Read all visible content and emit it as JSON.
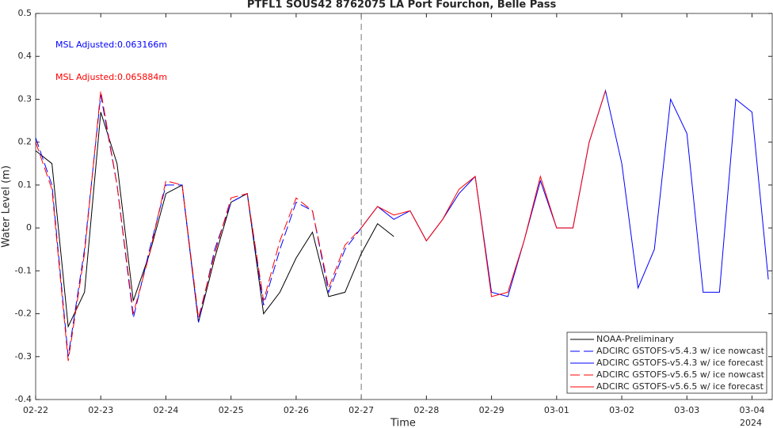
{
  "chart_data": {
    "type": "line",
    "title": "PTFL1 SOUS42 8762075 LA Port Fourchon, Belle Pass",
    "x_label": "Time",
    "y_label": "Water Level (m)",
    "xaxis_year": "2024",
    "annotations": [
      {
        "text": "MSL Adjusted:0.063166m",
        "color": "#0000ff"
      },
      {
        "text": "MSL Adjusted:0.065884m",
        "color": "#ff0000"
      }
    ],
    "x": [
      0,
      0.25,
      0.5,
      0.75,
      1,
      1.25,
      1.5,
      1.75,
      2,
      2.25,
      2.5,
      2.75,
      3,
      3.25,
      3.5,
      3.75,
      4,
      4.25,
      4.5,
      4.75,
      5,
      5.25,
      5.5,
      5.75,
      6,
      6.25,
      6.5,
      6.75,
      7,
      7.25,
      7.5,
      7.75,
      8,
      8.25,
      8.5,
      8.75,
      9,
      9.25,
      9.5,
      9.75,
      10,
      10.25,
      10.5,
      10.75,
      11,
      11.25
    ],
    "xlim": [
      0,
      11.31
    ],
    "xticks": [
      {
        "value": 0,
        "label": "02-22"
      },
      {
        "value": 1,
        "label": "02-23"
      },
      {
        "value": 2,
        "label": "02-24"
      },
      {
        "value": 3,
        "label": "02-25"
      },
      {
        "value": 4,
        "label": "02-26"
      },
      {
        "value": 5,
        "label": "02-27"
      },
      {
        "value": 6,
        "label": "02-28"
      },
      {
        "value": 7,
        "label": "02-29"
      },
      {
        "value": 8,
        "label": "03-01"
      },
      {
        "value": 9,
        "label": "03-02"
      },
      {
        "value": 10,
        "label": "03-03"
      },
      {
        "value": 11,
        "label": "03-04"
      }
    ],
    "ylim": [
      -0.4,
      0.5
    ],
    "yticks": [
      -0.4,
      -0.3,
      -0.2,
      -0.1,
      0,
      0.1,
      0.2,
      0.3,
      0.4,
      0.5
    ],
    "vline_x": 5,
    "legend": "lower right",
    "grid": false,
    "series": [
      {
        "name": "NOAA-Preliminary",
        "color": "#000000",
        "dash": false,
        "values": [
          0.18,
          0.15,
          -0.23,
          -0.15,
          0.27,
          0.15,
          -0.17,
          -0.06,
          0.08,
          0.1,
          -0.22,
          -0.07,
          0.06,
          0.08,
          -0.2,
          -0.15,
          -0.07,
          -0.01,
          -0.16,
          -0.15,
          -0.06,
          0.01,
          -0.02,
          null,
          null,
          null,
          null,
          null,
          null,
          null,
          null,
          null,
          null,
          null,
          null,
          null,
          null,
          null,
          null,
          null,
          null,
          null,
          null,
          null,
          null,
          null
        ]
      },
      {
        "name": "ADCIRC GSTOFS-v5.4.3 w/ ice nowcast",
        "color": "#0000ff",
        "dash": true,
        "values": [
          0.21,
          0.1,
          -0.3,
          -0.05,
          0.31,
          0.1,
          -0.21,
          -0.05,
          0.1,
          0.1,
          -0.22,
          -0.05,
          0.06,
          0.08,
          -0.18,
          -0.05,
          0.06,
          0.04,
          -0.15,
          -0.05,
          0.0,
          null,
          null,
          null,
          null,
          null,
          null,
          null,
          null,
          null,
          null,
          null,
          null,
          null,
          null,
          null,
          null,
          null,
          null,
          null,
          null,
          null,
          null,
          null,
          null,
          null
        ]
      },
      {
        "name": "ADCIRC GSTOFS-v5.4.3 w/ ice forecast",
        "color": "#0000ff",
        "dash": false,
        "values": [
          null,
          null,
          null,
          null,
          null,
          null,
          null,
          null,
          null,
          null,
          null,
          null,
          null,
          null,
          null,
          null,
          null,
          null,
          null,
          null,
          0.0,
          0.05,
          0.02,
          0.04,
          -0.03,
          0.02,
          0.08,
          0.12,
          -0.15,
          -0.16,
          -0.03,
          0.11,
          0.0,
          0.0,
          0.2,
          0.32,
          0.15,
          -0.14,
          -0.05,
          0.3,
          0.22,
          -0.15,
          -0.15,
          0.3,
          0.27,
          -0.12
        ]
      },
      {
        "name": "ADCIRC GSTOFS-v5.6.5 w/ ice nowcast",
        "color": "#ff0000",
        "dash": true,
        "values": [
          0.2,
          0.09,
          -0.31,
          -0.06,
          0.32,
          0.1,
          -0.2,
          -0.06,
          0.11,
          0.1,
          -0.21,
          -0.06,
          0.07,
          0.08,
          -0.17,
          -0.03,
          0.07,
          0.04,
          -0.14,
          -0.04,
          0.0,
          null,
          null,
          null,
          null,
          null,
          null,
          null,
          null,
          null,
          null,
          null,
          null,
          null,
          null,
          null,
          null,
          null,
          null,
          null,
          null,
          null,
          null,
          null,
          null,
          null
        ]
      },
      {
        "name": "ADCIRC GSTOFS-v5.6.5 w/ ice forecast",
        "color": "#ff0000",
        "dash": false,
        "values": [
          null,
          null,
          null,
          null,
          null,
          null,
          null,
          null,
          null,
          null,
          null,
          null,
          null,
          null,
          null,
          null,
          null,
          null,
          null,
          null,
          0.0,
          0.05,
          0.03,
          0.04,
          -0.03,
          0.02,
          0.09,
          0.12,
          -0.16,
          -0.15,
          -0.03,
          0.12,
          0.0,
          0.0,
          0.2,
          0.32,
          null,
          null,
          null,
          null,
          null,
          null,
          null,
          null,
          null,
          null
        ]
      }
    ]
  }
}
